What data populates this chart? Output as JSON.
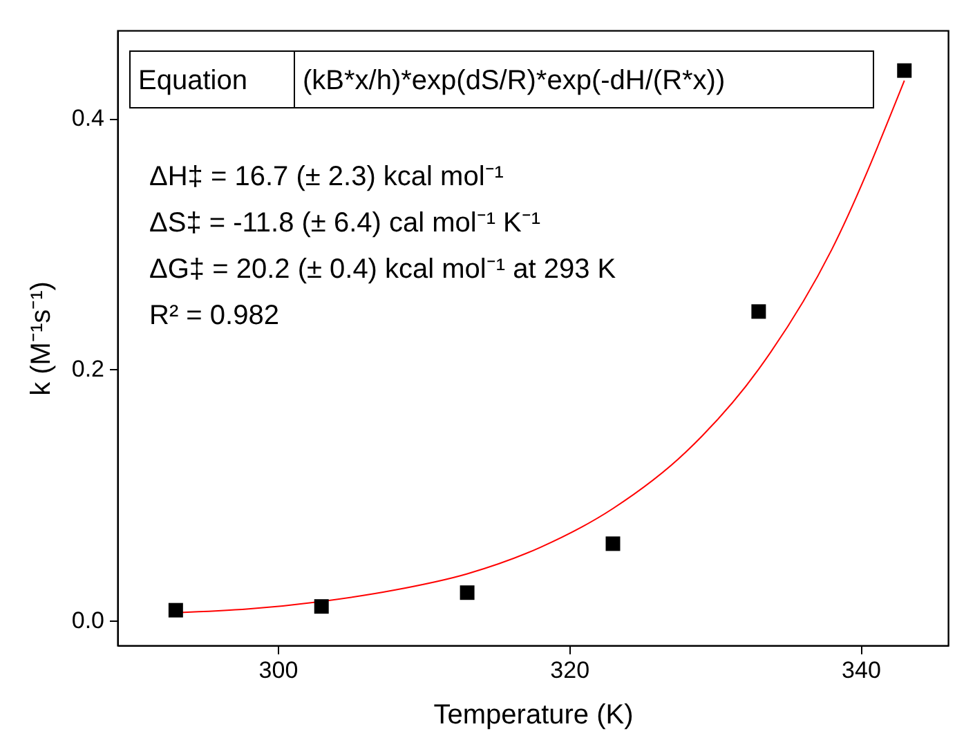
{
  "chart_data": {
    "type": "scatter",
    "xlabel": "Temperature (K)",
    "ylabel": "k (M⁻¹s⁻¹)",
    "xlim": [
      289,
      346
    ],
    "xticks": [
      300,
      320,
      340
    ],
    "ylim": [
      -0.02,
      0.47
    ],
    "yticks": [
      {
        "value": 0,
        "label": "0.0"
      },
      {
        "value": 0.2,
        "label": "0.2"
      },
      {
        "value": 0.4,
        "label": "0.4"
      }
    ],
    "series": [
      {
        "marker": "square",
        "color": "#000000",
        "x": [
          293,
          303,
          313,
          323,
          333,
          343
        ],
        "values": [
          0.008,
          0.011,
          0.022,
          0.061,
          0.246,
          0.438
        ]
      },
      {
        "type": "line",
        "color": "#ff0000",
        "x": [
          293,
          298,
          303,
          308,
          313,
          318,
          323,
          328,
          333,
          338,
          343
        ],
        "values": [
          0.006,
          0.009,
          0.015,
          0.024,
          0.037,
          0.058,
          0.089,
          0.134,
          0.2,
          0.295,
          0.43
        ]
      }
    ],
    "annotations": [
      "Equation",
      "(kB*x/h)*exp(dS/R)*exp(-dH/(R*x))",
      "ΔH‡ = 16.7 (± 2.3) kcal mol⁻¹",
      "ΔS‡ = -11.8 (± 6.4) cal mol⁻¹ K⁻¹",
      "ΔG‡ = 20.2 (± 0.4) kcal mol⁻¹ at 293 K",
      "R² = 0.982"
    ]
  }
}
